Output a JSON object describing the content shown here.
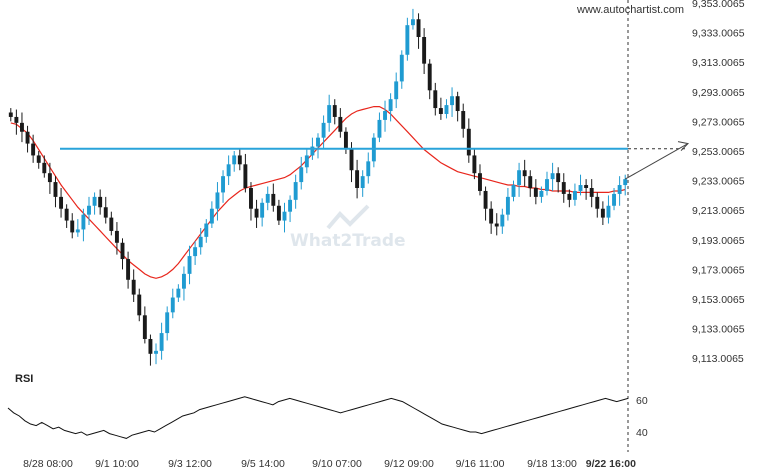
{
  "credit": "www.autochartist.com",
  "watermark": "What2Trade",
  "colors": {
    "candle": "#1f9bd1",
    "candle_dark": "#1a1a1a",
    "ma": "#e8261c",
    "level": "#29a3da",
    "rsi": "#111111",
    "grid_dash": "#333333"
  },
  "chart_data": [
    {
      "type": "candlestick",
      "title": "",
      "y_ticks": [
        "9,353.0065",
        "9,333.0065",
        "9,313.0065",
        "9,293.0065",
        "9,273.0065",
        "9,253.0065",
        "9,233.0065",
        "9,213.0065",
        "9,193.0065",
        "9,173.0065",
        "9,153.0065",
        "9,133.0065",
        "9,113.0065"
      ],
      "ylim": [
        9101.0,
        9355.0
      ],
      "x_ticks": [
        "8/28 08:00",
        "9/1 10:00",
        "9/3 12:00",
        "9/5 14:00",
        "9/10 07:00",
        "9/12 09:00",
        "9/16 11:00",
        "9/18 13:00",
        "9/22 16:00"
      ],
      "resistance_level": 9254.5,
      "projection_target": 9258.0,
      "close_path": [
        9276,
        9272,
        9266,
        9258,
        9250,
        9245,
        9238,
        9232,
        9222,
        9214,
        9206,
        9198,
        9200,
        9210,
        9216,
        9222,
        9215,
        9208,
        9199,
        9191,
        9180,
        9166,
        9156,
        9142,
        9126,
        9116,
        9118,
        9130,
        9144,
        9154,
        9160,
        9170,
        9182,
        9188,
        9195,
        9204,
        9214,
        9225,
        9236,
        9244,
        9250,
        9244,
        9228,
        9214,
        9208,
        9218,
        9224,
        9216,
        9206,
        9212,
        9220,
        9232,
        9242,
        9250,
        9256,
        9262,
        9272,
        9284,
        9276,
        9266,
        9254,
        9240,
        9228,
        9236,
        9246,
        9262,
        9274,
        9280,
        9288,
        9300,
        9318,
        9338,
        9342,
        9330,
        9312,
        9294,
        9282,
        9278,
        9284,
        9290,
        9280,
        9268,
        9250,
        9238,
        9226,
        9214,
        9204,
        9202,
        9210,
        9222,
        9230,
        9240,
        9236,
        9228,
        9222,
        9226,
        9234,
        9238,
        9232,
        9224,
        9220,
        9226,
        9230,
        9228,
        9222,
        9214,
        9208,
        9216,
        9224,
        9230,
        9234
      ],
      "ma_path": [
        9272,
        9271,
        9268,
        9265,
        9260,
        9254,
        9248,
        9242,
        9236,
        9230,
        9225,
        9220,
        9215,
        9211,
        9207,
        9203,
        9199,
        9195,
        9191,
        9187,
        9183,
        9179,
        9176,
        9173,
        9170,
        9168,
        9167,
        9168,
        9170,
        9173,
        9177,
        9182,
        9187,
        9192,
        9197,
        9202,
        9207,
        9212,
        9216,
        9220,
        9223,
        9226,
        9228,
        9229,
        9230,
        9231,
        9232,
        9233,
        9234,
        9235,
        9237,
        9240,
        9243,
        9247,
        9251,
        9255,
        9259,
        9263,
        9267,
        9271,
        9275,
        9278,
        9280,
        9281,
        9282,
        9283,
        9283,
        9281,
        9278,
        9274,
        9270,
        9266,
        9262,
        9258,
        9254,
        9251,
        9248,
        9245,
        9243,
        9241,
        9239,
        9238,
        9237,
        9236,
        9235,
        9234,
        9233,
        9232,
        9231,
        9230,
        9230,
        9229,
        9229,
        9228,
        9228,
        9227,
        9227,
        9226,
        9226,
        9226,
        9226,
        9225,
        9225,
        9225,
        9225,
        9225,
        9225,
        9225,
        9226,
        9226,
        9227
      ]
    },
    {
      "type": "line",
      "title": "RSI",
      "y_ticks": [
        "60",
        "40"
      ],
      "ylim": [
        30,
        70
      ],
      "values": [
        55,
        52,
        50,
        47,
        45,
        44,
        46,
        44,
        42,
        43,
        41,
        40,
        39,
        40,
        38,
        39,
        40,
        41,
        39,
        38,
        37,
        36,
        38,
        39,
        40,
        41,
        40,
        42,
        44,
        46,
        48,
        50,
        51,
        52,
        54,
        55,
        56,
        57,
        58,
        59,
        60,
        61,
        62,
        61,
        60,
        59,
        58,
        57,
        59,
        60,
        61,
        60,
        59,
        58,
        57,
        56,
        55,
        54,
        53,
        52,
        53,
        54,
        55,
        56,
        57,
        58,
        59,
        60,
        61,
        60,
        59,
        57,
        55,
        53,
        51,
        49,
        47,
        45,
        44,
        43,
        42,
        41,
        40,
        40,
        39,
        40,
        41,
        42,
        43,
        44,
        45,
        46,
        47,
        48,
        49,
        50,
        51,
        52,
        53,
        54,
        55,
        56,
        57,
        58,
        59,
        60,
        61,
        60,
        59,
        60,
        61
      ]
    }
  ]
}
